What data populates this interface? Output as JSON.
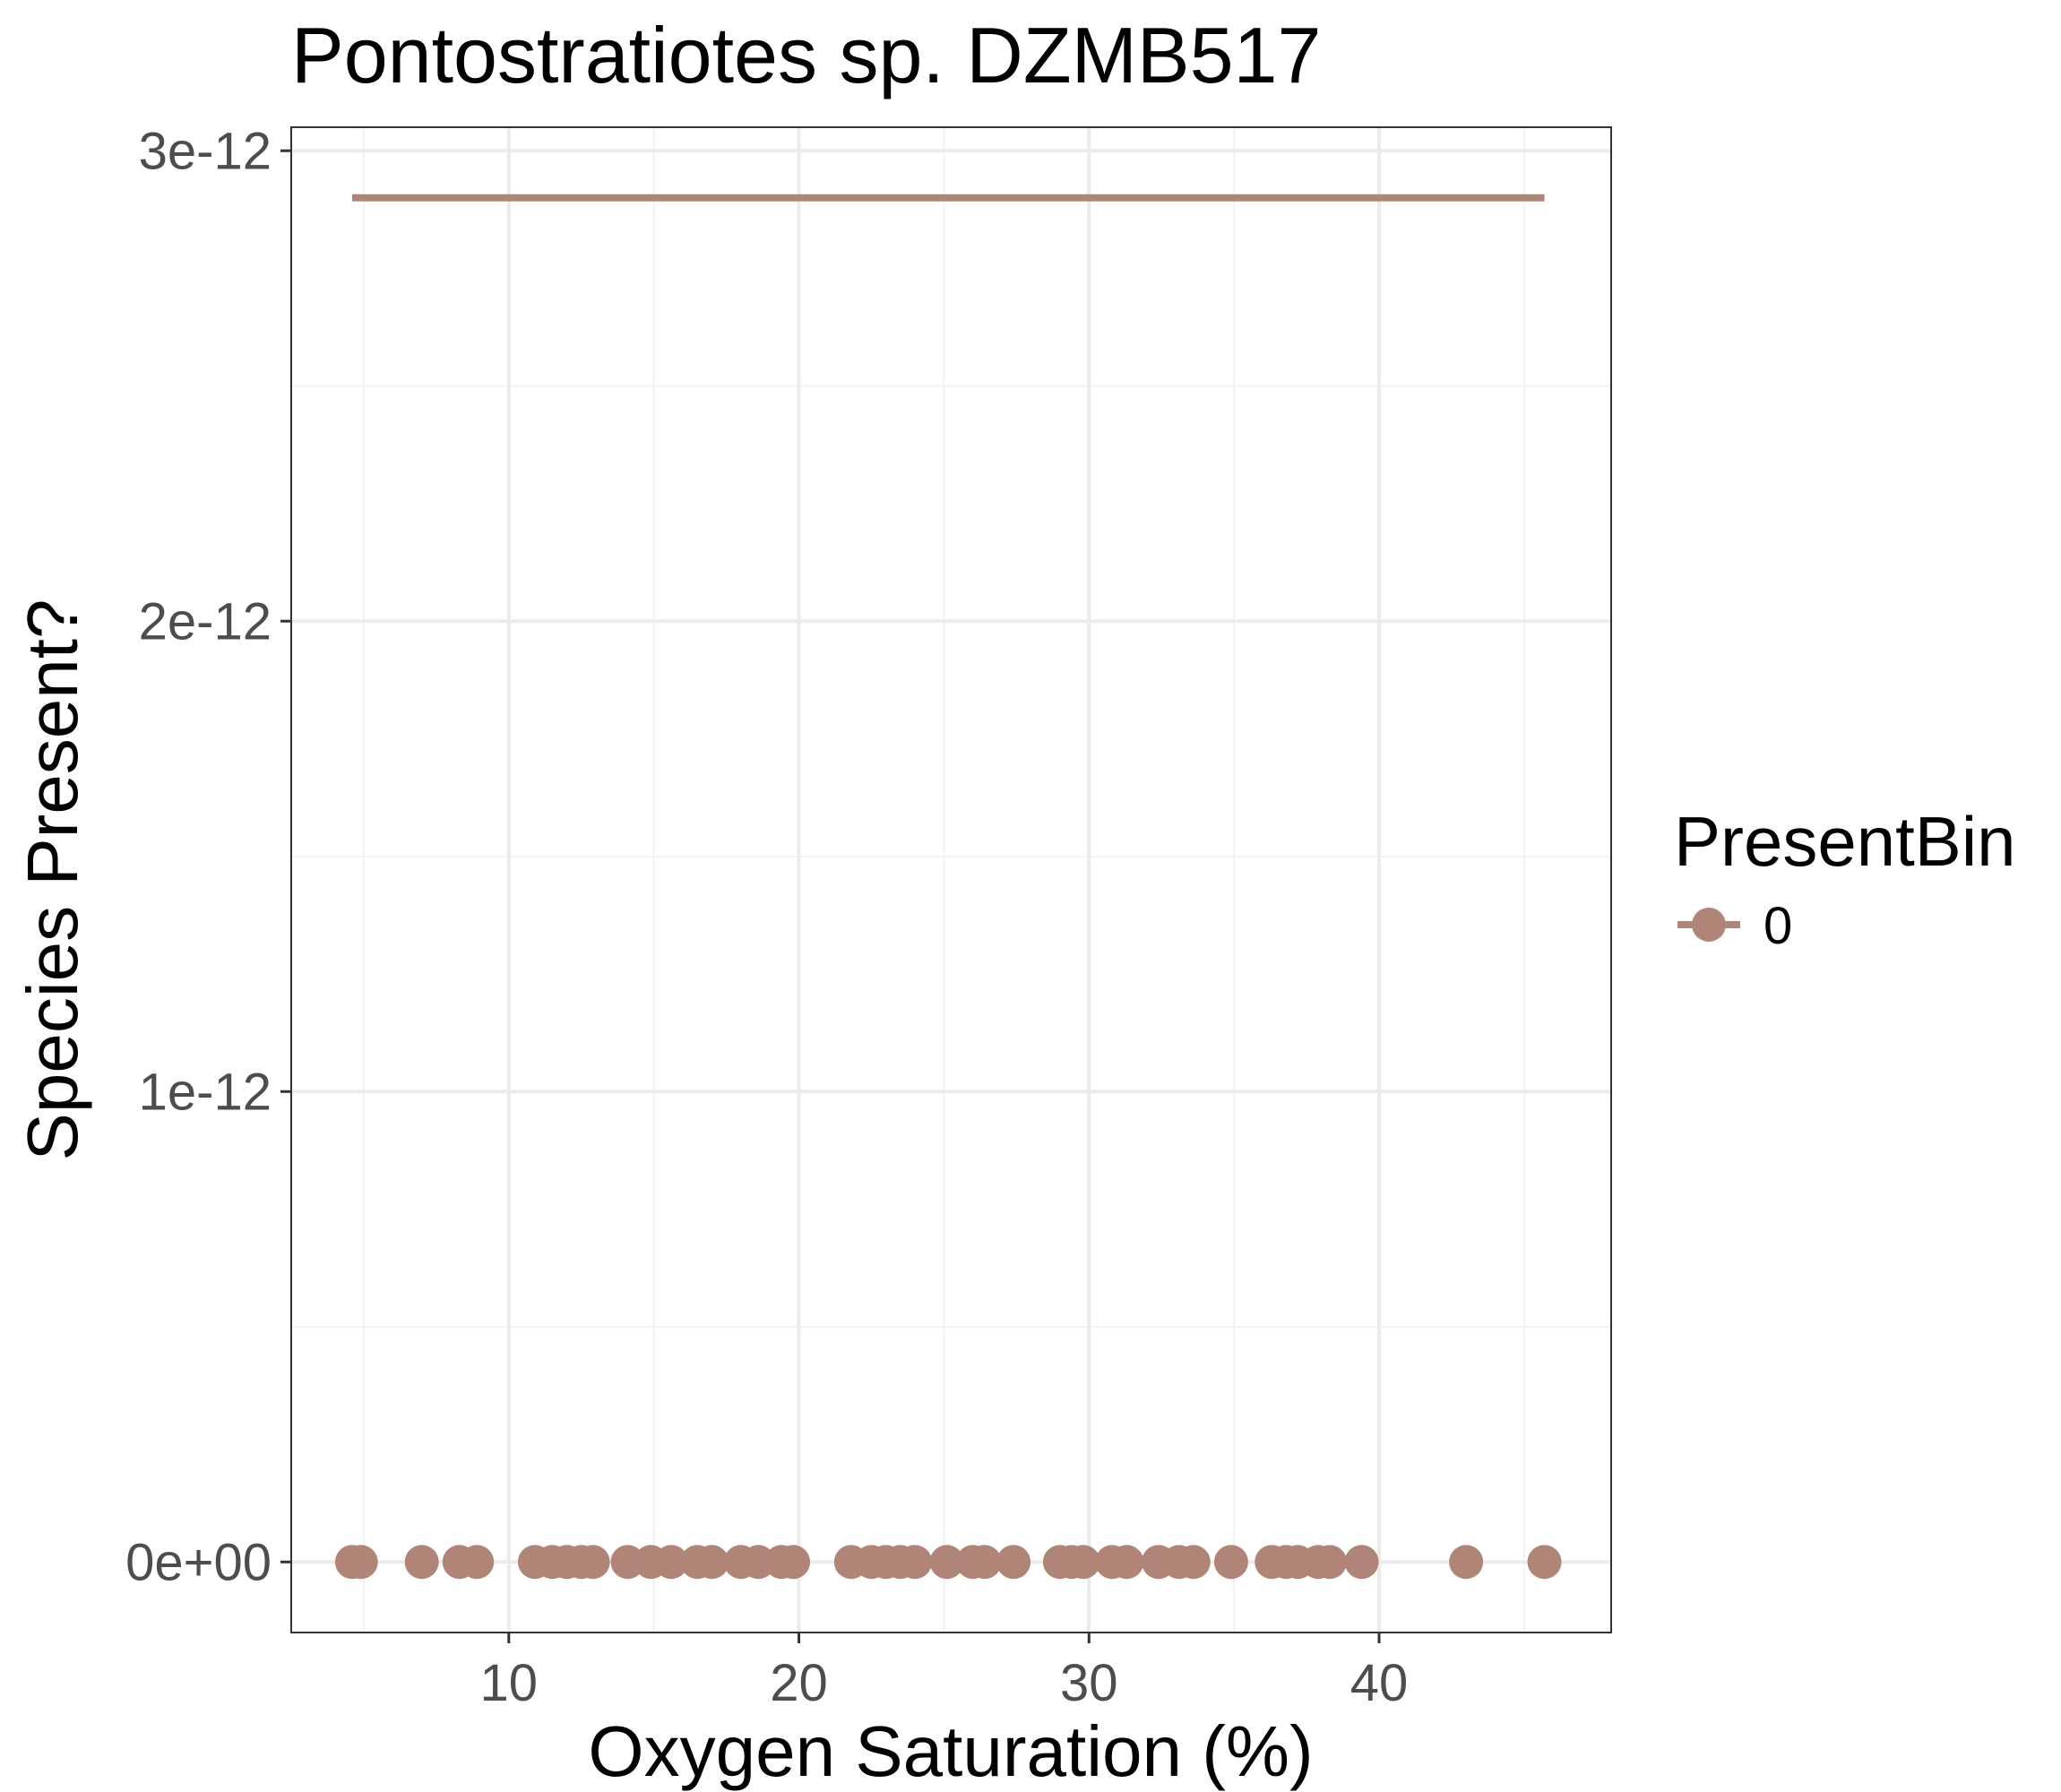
{
  "chart_data": {
    "type": "scatter",
    "title": "Pontostratiotes sp. DZMB517",
    "xlabel": "Oxygen Saturation (%)",
    "ylabel": "Species Present?",
    "xlim": [
      2.5,
      48
    ],
    "ylim": [
      -1.5e-13,
      3.05e-12
    ],
    "x_ticks": [
      10,
      20,
      30,
      40
    ],
    "x_tick_labels": [
      "10",
      "20",
      "30",
      "40"
    ],
    "y_ticks": [
      0,
      1e-12,
      2e-12,
      3e-12
    ],
    "y_tick_labels": [
      "0e+00",
      "1e-12",
      "2e-12",
      "3e-12"
    ],
    "grid": true,
    "legend": {
      "title": "PresentBin",
      "position": "right",
      "entries": [
        {
          "label": "0",
          "color": "#b08578"
        }
      ]
    },
    "series": [
      {
        "name": "0",
        "color": "#b08578",
        "points": {
          "x": [
            4.6,
            4.9,
            7.0,
            8.3,
            8.9,
            10.9,
            11.5,
            12.0,
            12.5,
            12.9,
            14.1,
            14.9,
            15.6,
            16.5,
            17.0,
            18.0,
            18.6,
            19.4,
            19.8,
            21.8,
            22.5,
            23.0,
            23.5,
            24.0,
            25.1,
            26.0,
            26.4,
            27.4,
            29.0,
            29.4,
            29.8,
            30.8,
            31.3,
            32.4,
            33.1,
            33.6,
            34.9,
            36.3,
            36.8,
            37.2,
            37.9,
            38.3,
            39.4,
            43.0,
            45.7
          ],
          "y": [
            0,
            0,
            0,
            0,
            0,
            0,
            0,
            0,
            0,
            0,
            0,
            0,
            0,
            0,
            0,
            0,
            0,
            0,
            0,
            0,
            0,
            0,
            0,
            0,
            0,
            0,
            0,
            0,
            0,
            0,
            0,
            0,
            0,
            0,
            0,
            0,
            0,
            0,
            0,
            0,
            0,
            0,
            0,
            0,
            0
          ]
        },
        "fit_line": {
          "x": [
            4.6,
            45.7
          ],
          "y": [
            2.9e-12,
            2.9e-12
          ]
        }
      }
    ]
  }
}
